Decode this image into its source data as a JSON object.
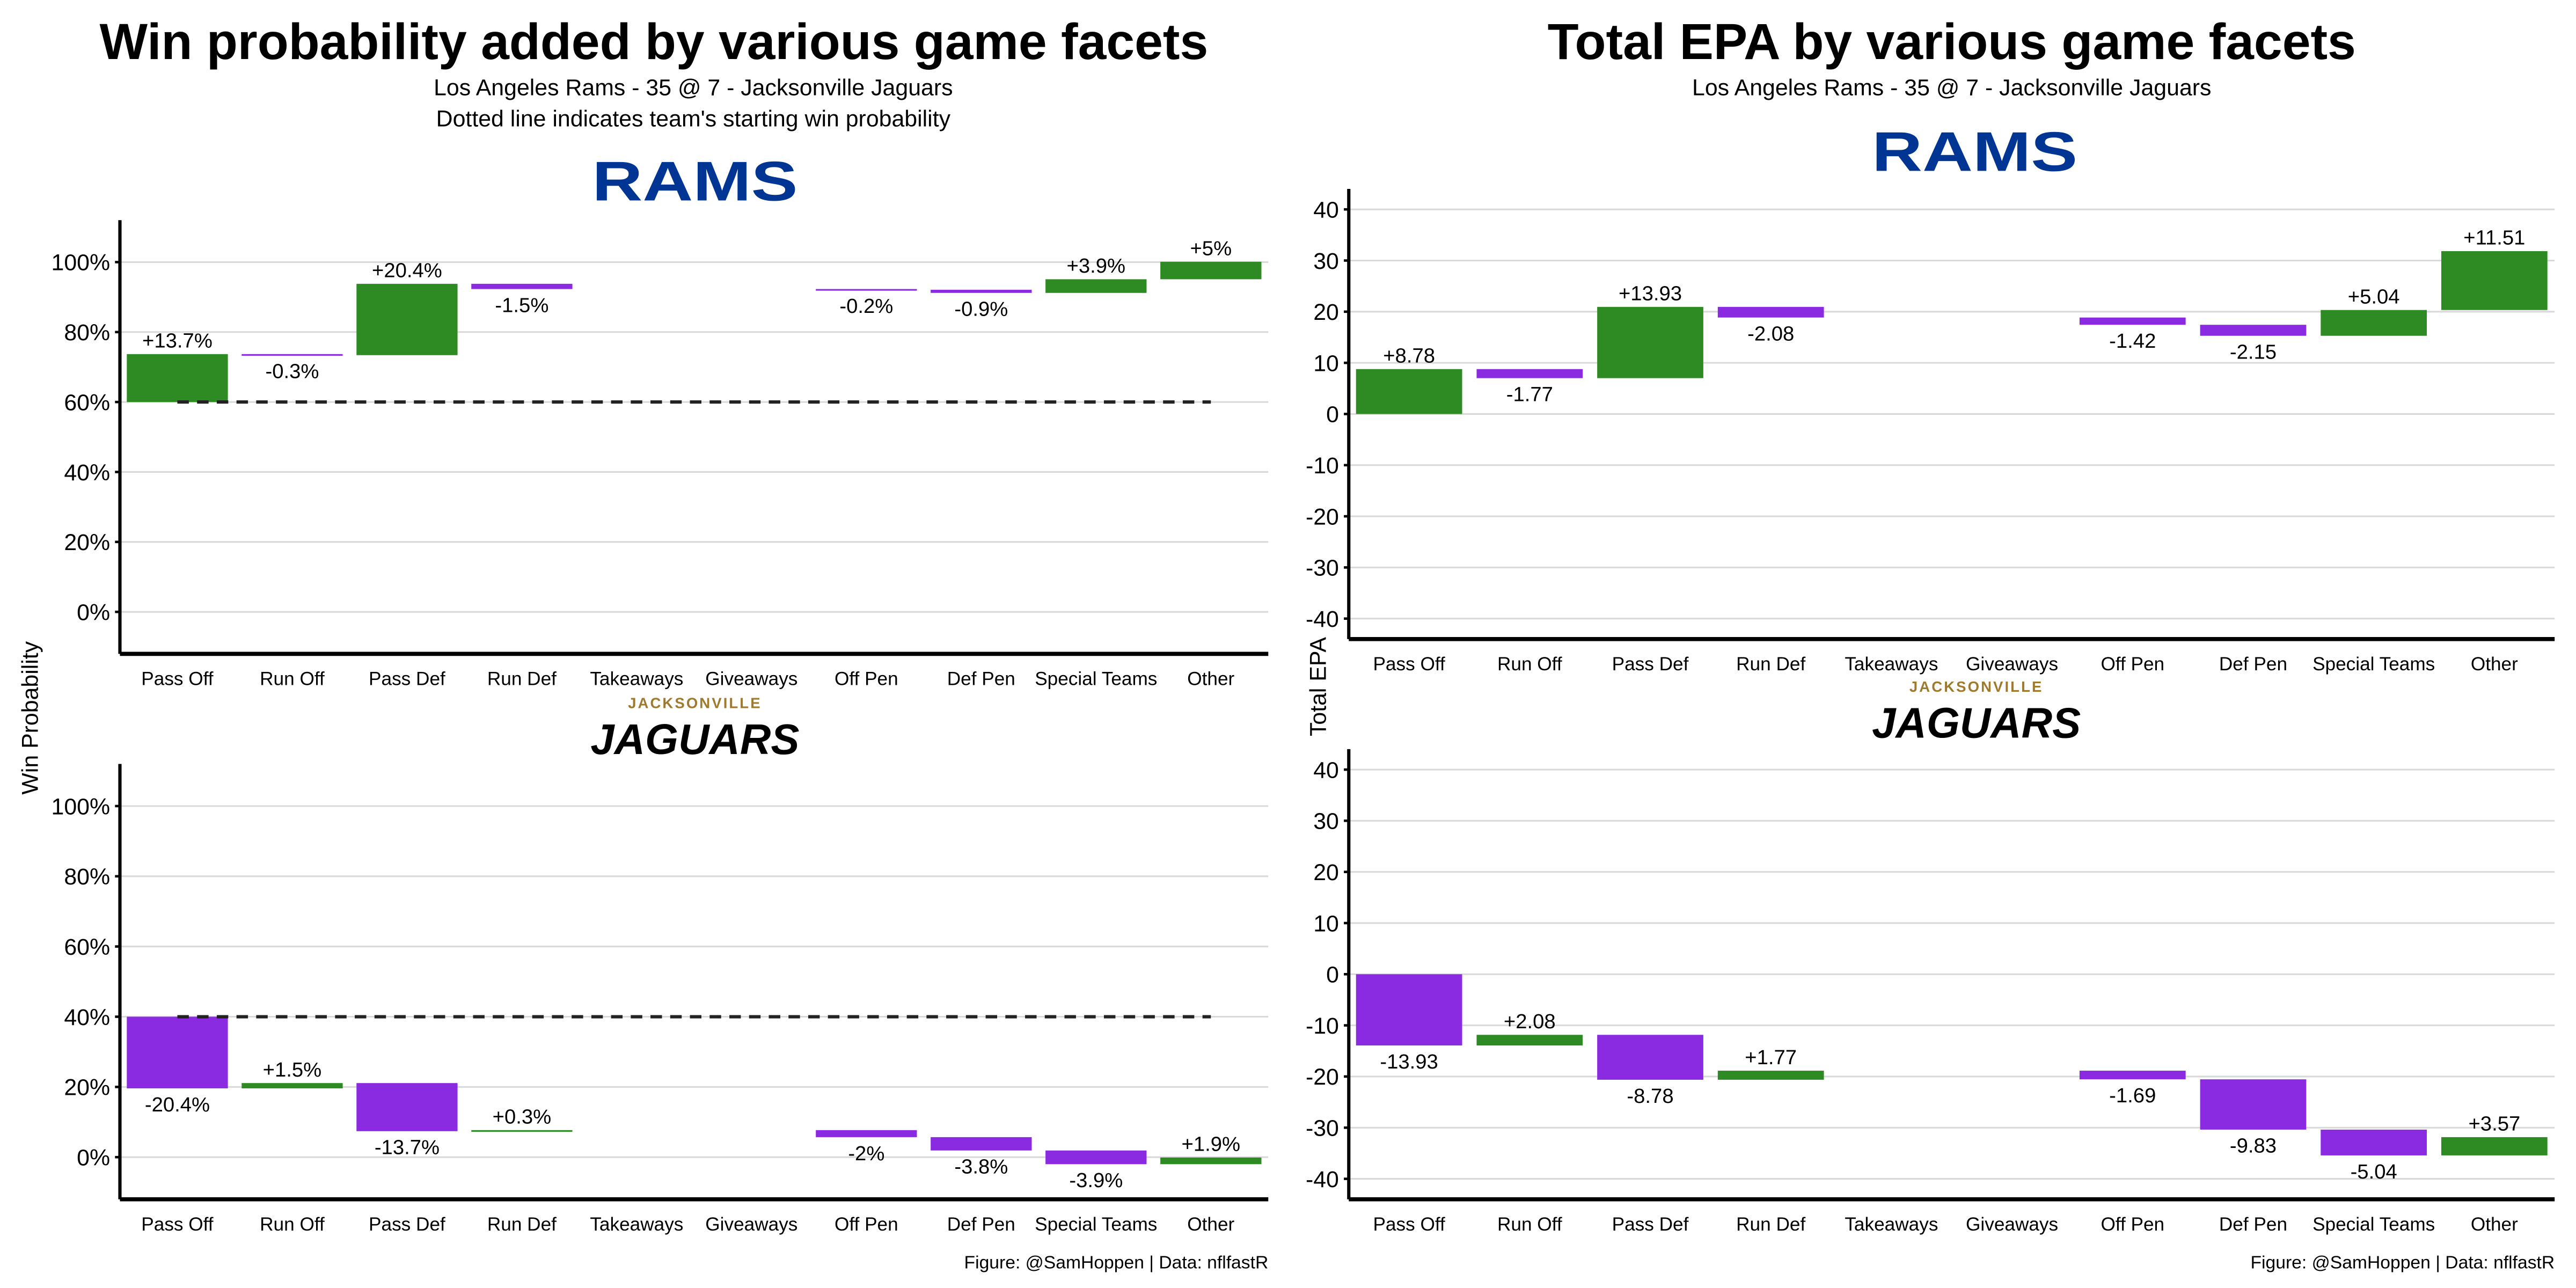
{
  "colors": {
    "positive": "#2e8b23",
    "negative": "#8a2be2",
    "grid": "#d9d9d9",
    "rams": "#003594",
    "jags_gold": "#9f792c"
  },
  "left": {
    "title": "Win probability added by various game facets",
    "subtitle1": "Los Angeles Rams - 35 @ 7 - Jacksonville Jaguars",
    "subtitle2": "Dotted line indicates team's starting win probability",
    "ylabel": "Win Probability",
    "caption": "Figure: @SamHoppen | Data: nflfastR"
  },
  "right": {
    "title": "Total EPA by various game facets",
    "subtitle1": "Los Angeles Rams - 35 @ 7 - Jacksonville Jaguars",
    "ylabel": "Total EPA",
    "caption": "Figure: @SamHoppen | Data: nflfastR"
  },
  "logos": {
    "rams": "RAMS",
    "jags_top": "JACKSONVILLE",
    "jags": "JAGUARS"
  },
  "chart_data": [
    {
      "type": "bar",
      "subtype": "waterfall",
      "panel": "wp-rams",
      "team": "RAMS",
      "start": 60,
      "dashed_baseline": true,
      "unit": "%",
      "categories": [
        "Pass Off",
        "Run Off",
        "Pass Def",
        "Run Def",
        "Takeaways",
        "Giveaways",
        "Off Pen",
        "Def Pen",
        "Special Teams",
        "Other"
      ],
      "values": [
        13.7,
        -0.3,
        20.4,
        -1.5,
        0,
        0,
        -0.2,
        -0.9,
        3.9,
        5
      ],
      "labels": [
        "+13.7%",
        "-0.3%",
        "+20.4%",
        "-1.5%",
        "",
        "",
        "-0.2%",
        "-0.9%",
        "+3.9%",
        "+5%"
      ],
      "yticks": [
        0,
        20,
        40,
        60,
        80,
        100
      ],
      "ytick_labels": [
        "0%",
        "20%",
        "40%",
        "60%",
        "80%",
        "100%"
      ],
      "ylim": [
        -12,
        112
      ]
    },
    {
      "type": "bar",
      "subtype": "waterfall",
      "panel": "wp-jags",
      "team": "JAGUARS",
      "start": 40,
      "dashed_baseline": true,
      "unit": "%",
      "categories": [
        "Pass Off",
        "Run Off",
        "Pass Def",
        "Run Def",
        "Takeaways",
        "Giveaways",
        "Off Pen",
        "Def Pen",
        "Special Teams",
        "Other"
      ],
      "values": [
        -20.4,
        1.5,
        -13.7,
        0.3,
        0,
        0,
        -2,
        -3.8,
        -3.9,
        1.9
      ],
      "labels": [
        "-20.4%",
        "+1.5%",
        "-13.7%",
        "+0.3%",
        "",
        "",
        "-2%",
        "-3.8%",
        "-3.9%",
        "+1.9%"
      ],
      "yticks": [
        0,
        20,
        40,
        60,
        80,
        100
      ],
      "ytick_labels": [
        "0%",
        "20%",
        "40%",
        "60%",
        "80%",
        "100%"
      ],
      "ylim": [
        -12,
        112
      ]
    },
    {
      "type": "bar",
      "subtype": "waterfall",
      "panel": "epa-rams",
      "team": "RAMS",
      "start": 0,
      "dashed_baseline": false,
      "categories": [
        "Pass Off",
        "Run Off",
        "Pass Def",
        "Run Def",
        "Takeaways",
        "Giveaways",
        "Off Pen",
        "Def Pen",
        "Special Teams",
        "Other"
      ],
      "values": [
        8.78,
        -1.77,
        13.93,
        -2.08,
        0,
        0,
        -1.42,
        -2.15,
        5.04,
        11.51
      ],
      "labels": [
        "+8.78",
        "-1.77",
        "+13.93",
        "-2.08",
        "",
        "",
        "-1.42",
        "-2.15",
        "+5.04",
        "+11.51"
      ],
      "yticks": [
        -40,
        -30,
        -20,
        -10,
        0,
        10,
        20,
        30,
        40
      ],
      "ytick_labels": [
        "-40",
        "-30",
        "-20",
        "-10",
        "0",
        "10",
        "20",
        "30",
        "40"
      ],
      "ylim": [
        -44,
        44
      ]
    },
    {
      "type": "bar",
      "subtype": "waterfall",
      "panel": "epa-jags",
      "team": "JAGUARS",
      "start": 0,
      "dashed_baseline": false,
      "categories": [
        "Pass Off",
        "Run Off",
        "Pass Def",
        "Run Def",
        "Takeaways",
        "Giveaways",
        "Off Pen",
        "Def Pen",
        "Special Teams",
        "Other"
      ],
      "values": [
        -13.93,
        2.08,
        -8.78,
        1.77,
        0,
        0,
        -1.69,
        -9.83,
        -5.04,
        3.57
      ],
      "labels": [
        "-13.93",
        "+2.08",
        "-8.78",
        "+1.77",
        "",
        "",
        "-1.69",
        "-9.83",
        "-5.04",
        "+3.57"
      ],
      "yticks": [
        -40,
        -30,
        -20,
        -10,
        0,
        10,
        20,
        30,
        40
      ],
      "ytick_labels": [
        "-40",
        "-30",
        "-20",
        "-10",
        "0",
        "10",
        "20",
        "30",
        "40"
      ],
      "ylim": [
        -44,
        44
      ]
    }
  ]
}
